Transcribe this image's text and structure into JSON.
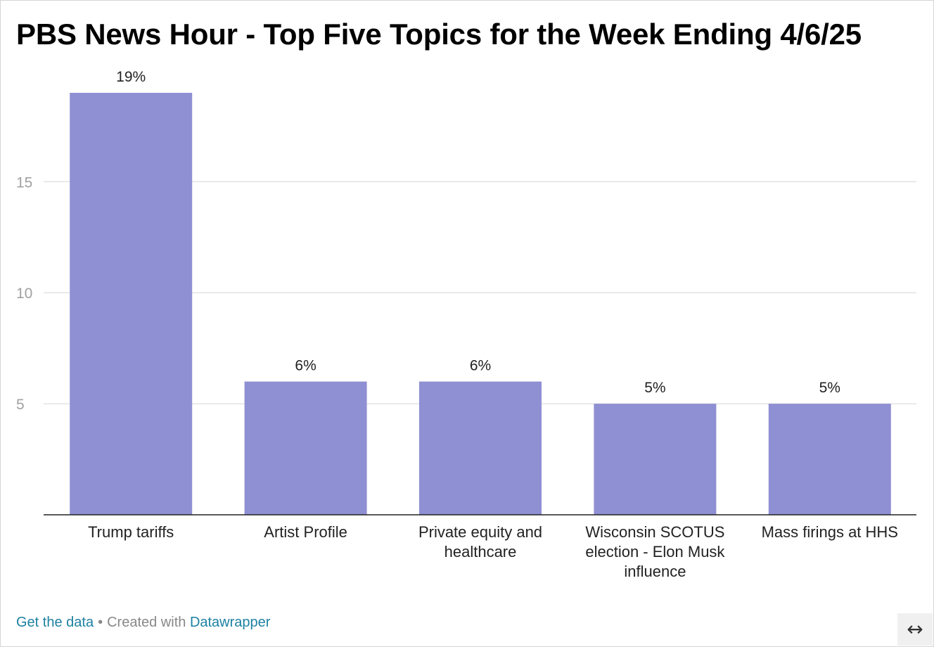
{
  "title": "PBS News Hour - Top Five Topics for the Week Ending 4/6/25",
  "footer": {
    "get_data": "Get the data",
    "separator": "•",
    "created_with": "Created with",
    "brand": "Datawrapper",
    "resize_icon": "↔"
  },
  "chart_data": {
    "type": "bar",
    "title": "PBS News Hour - Top Five Topics for the Week Ending 4/6/25",
    "categories": [
      [
        "Trump tariffs"
      ],
      [
        "Artist Profile"
      ],
      [
        "Private equity and",
        "healthcare"
      ],
      [
        "Wisconsin SCOTUS",
        "election - Elon Musk",
        "influence"
      ],
      [
        "Mass firings at HHS"
      ]
    ],
    "values": [
      19,
      6,
      6,
      5,
      5
    ],
    "value_labels": [
      "19%",
      "6%",
      "6%",
      "5%",
      "5%"
    ],
    "yticks": [
      5,
      10,
      15
    ],
    "ylim": [
      0,
      19
    ],
    "xlabel": "",
    "ylabel": "",
    "grid": true,
    "bar_color": "#8f8fd3"
  }
}
